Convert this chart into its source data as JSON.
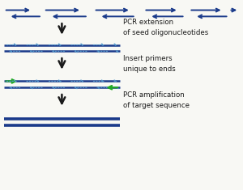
{
  "bg_color": "#f8f8f4",
  "dark_blue": "#1a3a8a",
  "light_blue": "#5599cc",
  "green": "#22aa22",
  "arrow_color": "#1a1a1a",
  "text_color": "#1a1a1a",
  "label1": "PCR extension\nof seed oligonucleotides",
  "label2": "Insert primers\nunique to ends",
  "label3": "PCR amplification\nof target sequence",
  "fig_width": 3.0,
  "fig_height": 2.35,
  "dpi": 100
}
